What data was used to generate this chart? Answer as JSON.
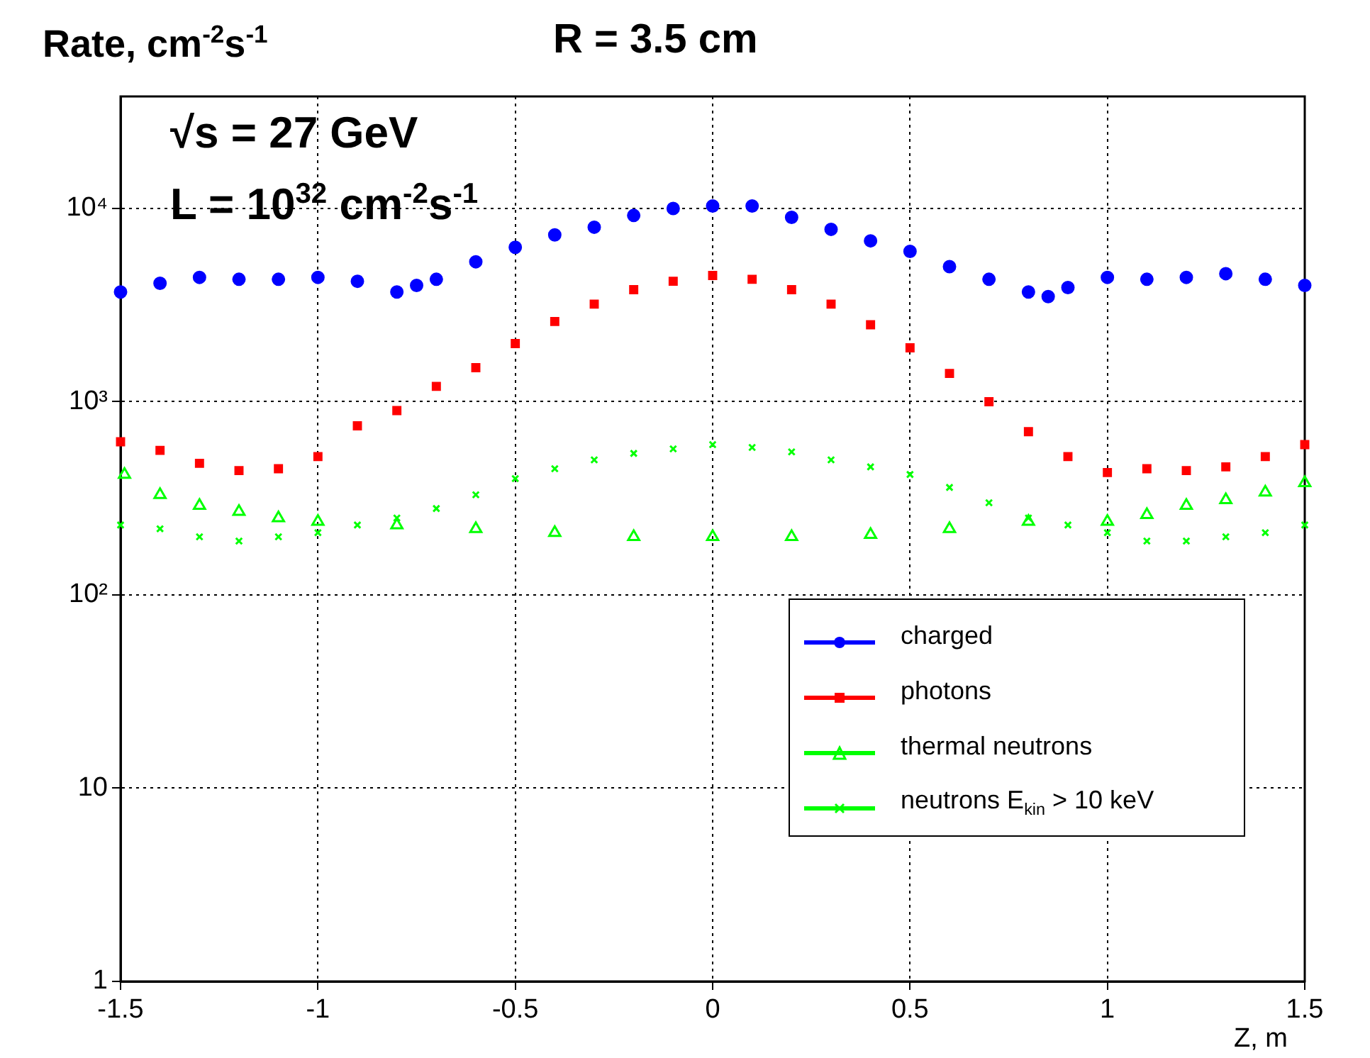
{
  "chart_data": {
    "type": "scatter",
    "title": "R = 3.5 cm",
    "ylabel": "Rate, cm$^{-2}$s$^{-1}$",
    "xlabel": "Z, m",
    "annotations": [
      "√s = 27 GeV",
      "L = 10$^{32}$ cm$^{-2}$s$^{-1}$"
    ],
    "log": "y",
    "grid": true,
    "legend": "bottom right",
    "xlim": [
      -1.5,
      1.5
    ],
    "xticks": [
      -1.5,
      -1,
      -0.5,
      0,
      0.5,
      1,
      1.5
    ],
    "ylim": [
      1,
      38000
    ],
    "yticks": [
      1,
      10,
      {
        "value": 100,
        "label": "10²"
      },
      {
        "value": 1000,
        "label": "10³"
      },
      {
        "value": 10000,
        "label": "10⁴"
      }
    ],
    "series": [
      {
        "name": "charged",
        "color": "#0000ff",
        "marker": "circle",
        "x": [
          -1.5,
          -1.4,
          -1.3,
          -1.2,
          -1.1,
          -1.0,
          -0.9,
          -0.8,
          -0.75,
          -0.7,
          -0.6,
          -0.5,
          -0.4,
          -0.3,
          -0.2,
          -0.1,
          0,
          0.1,
          0.2,
          0.3,
          0.4,
          0.5,
          0.6,
          0.7,
          0.8,
          0.85,
          0.9,
          1.0,
          1.1,
          1.2,
          1.3,
          1.4,
          1.5
        ],
        "values": [
          3700,
          4100,
          4400,
          4300,
          4300,
          4400,
          4200,
          3700,
          4000,
          4300,
          5300,
          6300,
          7300,
          8000,
          9200,
          10000,
          10300,
          10300,
          9000,
          7800,
          6800,
          6000,
          5000,
          4300,
          3700,
          3500,
          3900,
          4400,
          4300,
          4400,
          4600,
          4300,
          4000
        ]
      },
      {
        "name": "photons",
        "color": "#ff0000",
        "marker": "square",
        "x": [
          -1.5,
          -1.4,
          -1.3,
          -1.2,
          -1.1,
          -1.0,
          -0.9,
          -0.8,
          -0.7,
          -0.6,
          -0.5,
          -0.4,
          -0.3,
          -0.2,
          -0.1,
          0,
          0.1,
          0.2,
          0.3,
          0.4,
          0.5,
          0.6,
          0.7,
          0.8,
          0.9,
          1.0,
          1.1,
          1.2,
          1.3,
          1.4,
          1.5
        ],
        "values": [
          620,
          560,
          480,
          440,
          450,
          520,
          750,
          900,
          1200,
          1500,
          2000,
          2600,
          3200,
          3800,
          4200,
          4500,
          4300,
          3800,
          3200,
          2500,
          1900,
          1400,
          1000,
          700,
          520,
          430,
          450,
          440,
          460,
          520,
          600
        ]
      },
      {
        "name": "thermal neutrons",
        "color": "#00ff00",
        "marker": "triangle",
        "x": [
          -1.49,
          -1.4,
          -1.3,
          -1.2,
          -1.1,
          -1.0,
          -0.8,
          -0.6,
          -0.4,
          -0.2,
          0,
          0.2,
          0.4,
          0.6,
          0.8,
          1.0,
          1.1,
          1.2,
          1.3,
          1.4,
          1.5
        ],
        "values": [
          420,
          330,
          290,
          270,
          250,
          240,
          230,
          220,
          210,
          200,
          200,
          200,
          205,
          220,
          240,
          240,
          260,
          290,
          310,
          340,
          380
        ]
      },
      {
        "name": "neutrons E$_{kin}$ > 10 keV",
        "color": "#00ff00",
        "marker": "cross",
        "x": [
          -1.5,
          -1.4,
          -1.3,
          -1.2,
          -1.1,
          -1.0,
          -0.9,
          -0.8,
          -0.7,
          -0.6,
          -0.5,
          -0.4,
          -0.3,
          -0.2,
          -0.1,
          0,
          0.1,
          0.2,
          0.3,
          0.4,
          0.5,
          0.6,
          0.7,
          0.8,
          0.9,
          1.0,
          1.1,
          1.2,
          1.3,
          1.4,
          1.5
        ],
        "values": [
          230,
          220,
          200,
          190,
          200,
          210,
          230,
          250,
          280,
          330,
          400,
          450,
          500,
          540,
          570,
          600,
          580,
          550,
          500,
          460,
          420,
          360,
          300,
          250,
          230,
          210,
          190,
          190,
          200,
          210,
          230
        ]
      }
    ]
  }
}
